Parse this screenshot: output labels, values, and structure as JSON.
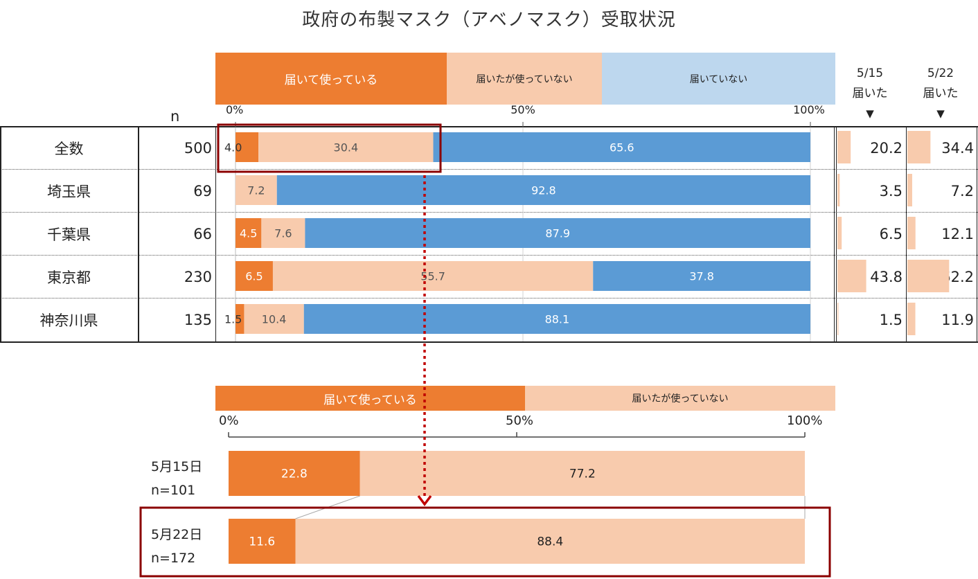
{
  "title": "政府の布製マスク（アベノマスク）受取状況",
  "colors": {
    "used": "#ED7D31",
    "unused": "#F8CBAD",
    "not_received": "#5B9BD5",
    "not_received_legend": "#BDD7EE",
    "highlight": "#8B0000"
  },
  "legend": [
    "届いて使っている",
    "届いたが使っていない",
    "届いていない"
  ],
  "headers": {
    "n": "n",
    "col1_line1": "5/15",
    "col1_line2": "届いた",
    "col2_line1": "5/22",
    "col2_line2": "届いた",
    "arrow": "▼"
  },
  "ticks": [
    "0%",
    "50%",
    "100%"
  ],
  "chart_data": [
    {
      "type": "bar",
      "stacked": true,
      "orientation": "horizontal",
      "title": "政府の布製マスク（アベノマスク）受取状況",
      "categories": [
        "全数",
        "埼玉県",
        "千葉県",
        "東京都",
        "神奈川県"
      ],
      "n": [
        "500",
        "69",
        "66",
        "230",
        "135"
      ],
      "series": [
        {
          "name": "届いて使っている",
          "values": [
            4.0,
            0,
            4.5,
            6.5,
            1.5
          ],
          "labels": [
            "4.0",
            "",
            "4.5",
            "6.5",
            "1.5"
          ]
        },
        {
          "name": "届いたが使っていない",
          "values": [
            30.4,
            7.2,
            7.6,
            55.7,
            10.4
          ],
          "labels": [
            "30.4",
            "7.2",
            "7.6",
            "55.7",
            "10.4"
          ]
        },
        {
          "name": "届いていない",
          "values": [
            65.6,
            92.8,
            87.9,
            37.8,
            88.1
          ],
          "labels": [
            "65.6",
            "92.8",
            "87.9",
            "37.8",
            "88.1"
          ]
        }
      ],
      "xlim": [
        0,
        100
      ],
      "side_columns": {
        "5/15 届いた": {
          "values": [
            20.2,
            3.5,
            6.5,
            43.8,
            1.5
          ],
          "labels": [
            "20.2",
            "3.5",
            "6.5",
            "43.8",
            "1.5"
          ]
        },
        "5/22 届いた": {
          "values": [
            34.4,
            7.2,
            12.1,
            62.2,
            11.9
          ],
          "labels": [
            "34.4",
            "7.2",
            "12.1",
            "62.2",
            "11.9"
          ]
        }
      }
    },
    {
      "type": "bar",
      "stacked": true,
      "orientation": "horizontal",
      "categories": [
        {
          "date": "5月15日",
          "n": "n=101"
        },
        {
          "date": "5月22日",
          "n": "n=172"
        }
      ],
      "series": [
        {
          "name": "届いて使っている",
          "values": [
            22.8,
            11.6
          ],
          "labels": [
            "22.8",
            "11.6"
          ]
        },
        {
          "name": "届いたが使っていない",
          "values": [
            77.2,
            88.4
          ],
          "labels": [
            "77.2",
            "88.4"
          ]
        }
      ],
      "legend": [
        "届いて使っている",
        "届いたが使っていない"
      ],
      "xlim": [
        0,
        100
      ]
    }
  ]
}
